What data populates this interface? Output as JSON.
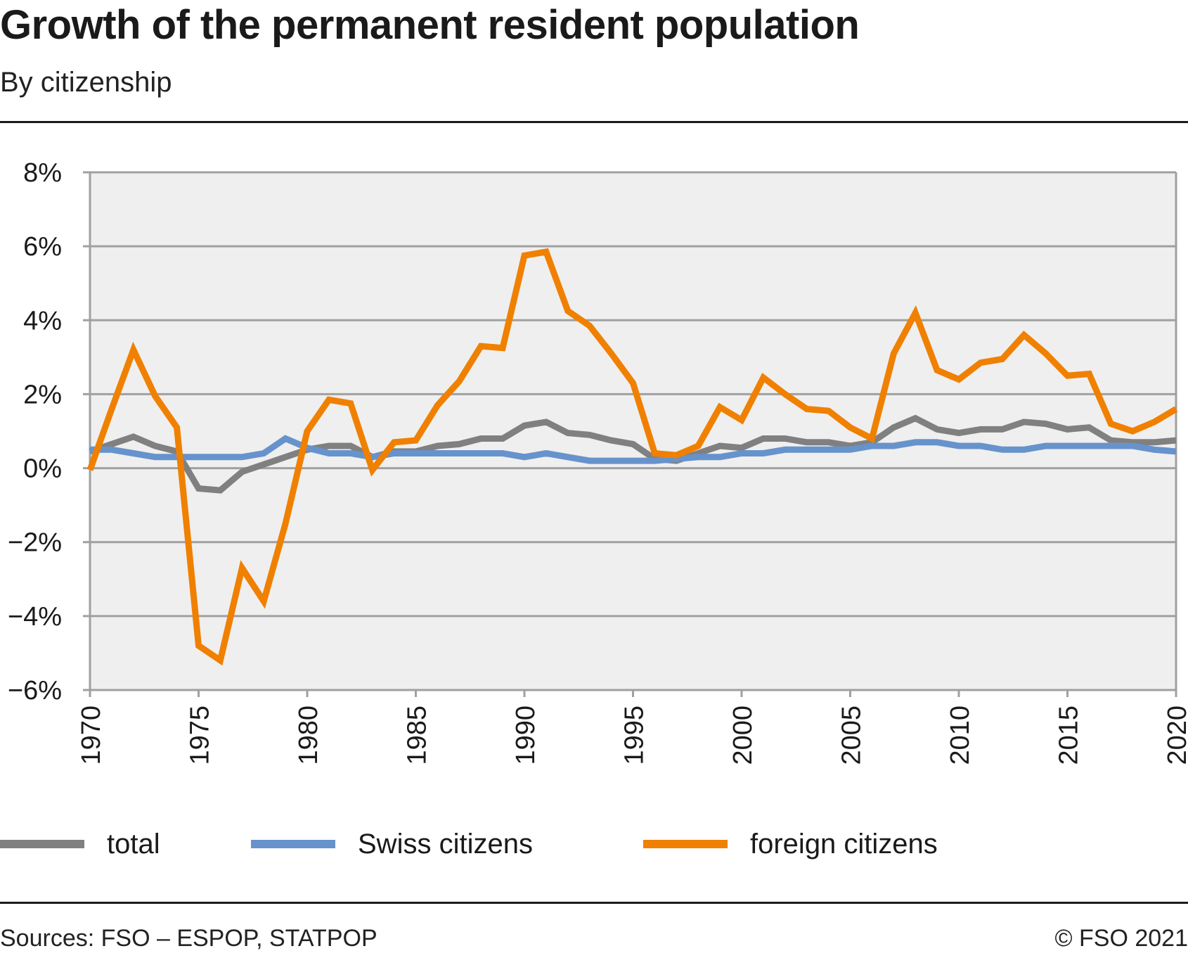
{
  "header": {
    "title": "Growth of the permanent resident population",
    "subtitle": "By citizenship"
  },
  "footer": {
    "sources": "Sources: FSO – ESPOP, STATPOP",
    "copyright": "© FSO 2021"
  },
  "chart_data": {
    "type": "line",
    "title": "Growth of the permanent resident population",
    "subtitle": "By citizenship",
    "xlabel": "",
    "ylabel": "",
    "x": [
      1970,
      1971,
      1972,
      1973,
      1974,
      1975,
      1976,
      1977,
      1978,
      1979,
      1980,
      1981,
      1982,
      1983,
      1984,
      1985,
      1986,
      1987,
      1988,
      1989,
      1990,
      1991,
      1992,
      1993,
      1994,
      1995,
      1996,
      1997,
      1998,
      1999,
      2000,
      2001,
      2002,
      2003,
      2004,
      2005,
      2006,
      2007,
      2008,
      2009,
      2010,
      2011,
      2012,
      2013,
      2014,
      2015,
      2016,
      2017,
      2018,
      2019,
      2020
    ],
    "x_ticks": [
      "1970",
      "1975",
      "1980",
      "1985",
      "1990",
      "1995",
      "2000",
      "2005",
      "2010",
      "2015",
      "2020"
    ],
    "x_tick_values": [
      1970,
      1975,
      1980,
      1985,
      1990,
      1995,
      2000,
      2005,
      2010,
      2015,
      2020
    ],
    "xlim": [
      1970,
      2020
    ],
    "y_ticks": [
      "8%",
      "6%",
      "4%",
      "2%",
      "0%",
      "−2%",
      "−4%",
      "−6%"
    ],
    "y_tick_values": [
      8,
      6,
      4,
      2,
      0,
      -2,
      -4,
      -6
    ],
    "ylim": [
      -6,
      8
    ],
    "y_unit": "%",
    "grid": true,
    "legend_position": "bottom",
    "series": [
      {
        "name": "total",
        "color": "#808080",
        "values": [
          0.45,
          0.65,
          0.85,
          0.6,
          0.45,
          -0.55,
          -0.6,
          -0.1,
          0.1,
          0.3,
          0.5,
          0.6,
          0.6,
          0.3,
          0.45,
          0.45,
          0.6,
          0.65,
          0.8,
          0.8,
          1.15,
          1.25,
          0.95,
          0.9,
          0.75,
          0.65,
          0.25,
          0.2,
          0.4,
          0.6,
          0.55,
          0.8,
          0.8,
          0.7,
          0.7,
          0.6,
          0.7,
          1.1,
          1.35,
          1.05,
          0.95,
          1.05,
          1.05,
          1.25,
          1.2,
          1.05,
          1.1,
          0.75,
          0.7,
          0.7,
          0.75
        ]
      },
      {
        "name": "Swiss citizens",
        "color": "#6793cc",
        "values": [
          0.5,
          0.5,
          0.4,
          0.3,
          0.3,
          0.3,
          0.3,
          0.3,
          0.4,
          0.8,
          0.55,
          0.4,
          0.4,
          0.3,
          0.4,
          0.4,
          0.4,
          0.4,
          0.4,
          0.4,
          0.3,
          0.4,
          0.3,
          0.2,
          0.2,
          0.2,
          0.2,
          0.25,
          0.3,
          0.3,
          0.4,
          0.4,
          0.5,
          0.5,
          0.5,
          0.5,
          0.6,
          0.6,
          0.7,
          0.7,
          0.6,
          0.6,
          0.5,
          0.5,
          0.6,
          0.6,
          0.6,
          0.6,
          0.6,
          0.5,
          0.45
        ]
      },
      {
        "name": "foreign citizens",
        "color": "#f08000",
        "values": [
          -0.05,
          1.6,
          3.2,
          1.95,
          1.1,
          -4.8,
          -5.2,
          -2.7,
          -3.6,
          -1.5,
          1.0,
          1.85,
          1.75,
          -0.05,
          0.7,
          0.75,
          1.7,
          2.35,
          3.3,
          3.25,
          5.75,
          5.85,
          4.25,
          3.85,
          3.1,
          2.3,
          0.4,
          0.35,
          0.6,
          1.65,
          1.3,
          2.45,
          2.0,
          1.6,
          1.55,
          1.1,
          0.8,
          3.1,
          4.2,
          2.65,
          2.4,
          2.85,
          2.95,
          3.6,
          3.1,
          2.5,
          2.55,
          1.2,
          1.0,
          1.25,
          1.6
        ]
      }
    ]
  },
  "colors": {
    "plot_background": "#efefef",
    "gridline": "#a0a0a0",
    "text": "#1a1a1a"
  }
}
